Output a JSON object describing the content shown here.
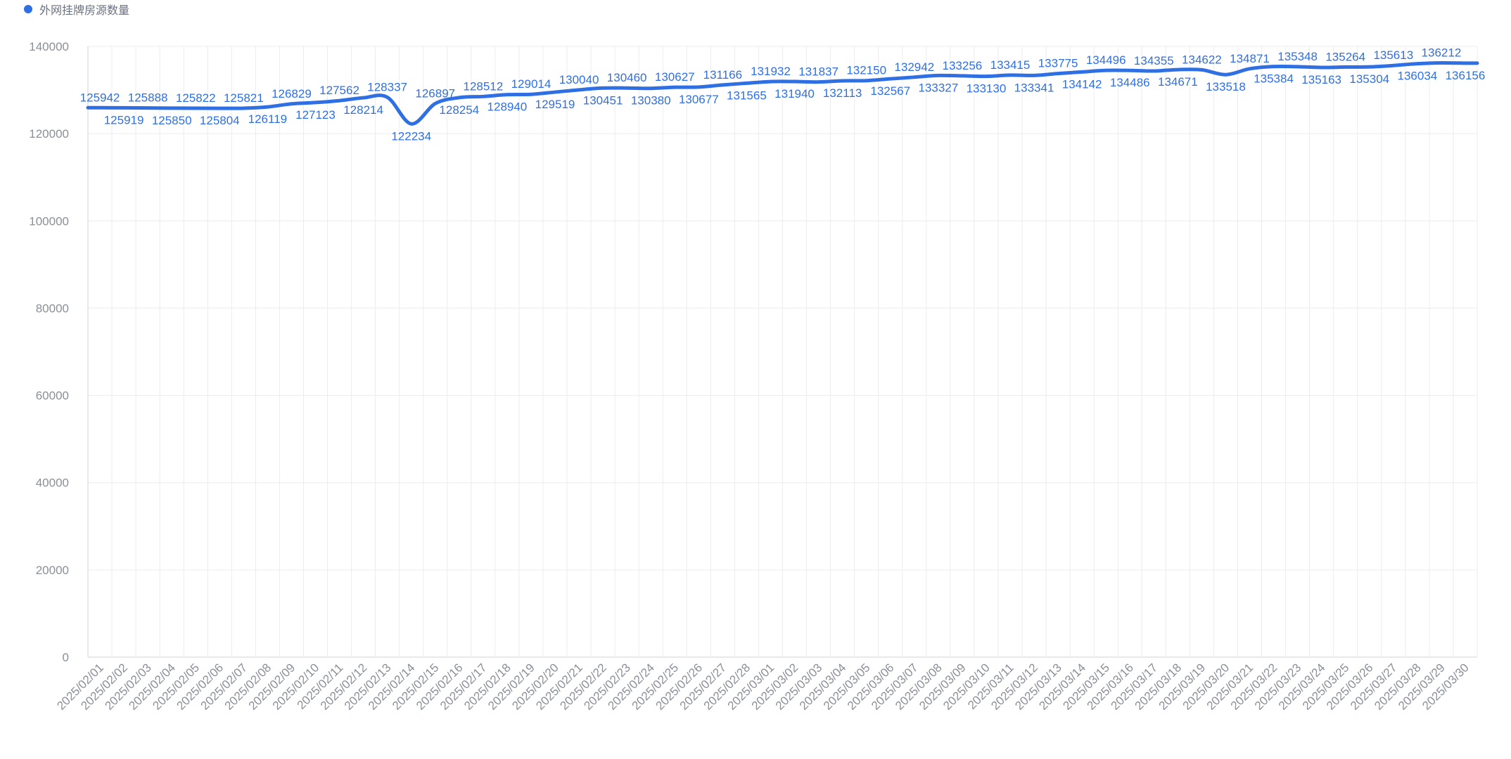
{
  "chart_data": {
    "type": "line",
    "legend": {
      "position": "top-left",
      "color": "#2f6fe4"
    },
    "colors": {
      "line": "#2f6fe4",
      "grid": "#ececec",
      "axis": "#cfd3d9",
      "tick_text": "#8a8f98"
    },
    "series": [
      {
        "name": "外网挂牌房源数量",
        "values": [
          125942,
          125919,
          125888,
          125850,
          125822,
          125804,
          125821,
          126119,
          126829,
          127123,
          127562,
          128214,
          128337,
          122234,
          126897,
          128254,
          128512,
          128940,
          129014,
          129519,
          130040,
          130451,
          130460,
          130380,
          130627,
          130677,
          131166,
          131565,
          131932,
          131940,
          131837,
          132113,
          132150,
          132567,
          132942,
          133327,
          133256,
          133130,
          133415,
          133341,
          133775,
          134142,
          134496,
          134486,
          134355,
          134671,
          134622,
          133518,
          134871,
          135384,
          135348,
          135163,
          135264,
          135304,
          135613,
          136034,
          136212,
          136156
        ]
      }
    ],
    "x": [
      "2025/02/01",
      "2025/02/02",
      "2025/02/03",
      "2025/02/04",
      "2025/02/05",
      "2025/02/06",
      "2025/02/07",
      "2025/02/08",
      "2025/02/09",
      "2025/02/10",
      "2025/02/11",
      "2025/02/12",
      "2025/02/13",
      "2025/02/14",
      "2025/02/15",
      "2025/02/16",
      "2025/02/17",
      "2025/02/18",
      "2025/02/19",
      "2025/02/20",
      "2025/02/21",
      "2025/02/22",
      "2025/02/23",
      "2025/02/24",
      "2025/02/25",
      "2025/02/26",
      "2025/02/27",
      "2025/02/28",
      "2025/03/01",
      "2025/03/02",
      "2025/03/03",
      "2025/03/04",
      "2025/03/05",
      "2025/03/06",
      "2025/03/07",
      "2025/03/08",
      "2025/03/09",
      "2025/03/10",
      "2025/03/11",
      "2025/03/12",
      "2025/03/13",
      "2025/03/14",
      "2025/03/15",
      "2025/03/16",
      "2025/03/17",
      "2025/03/18",
      "2025/03/19",
      "2025/03/20",
      "2025/03/21",
      "2025/03/22",
      "2025/03/23",
      "2025/03/24",
      "2025/03/25",
      "2025/03/26",
      "2025/03/27",
      "2025/03/28",
      "2025/03/29",
      "2025/03/30"
    ],
    "ylim": [
      0,
      140000
    ],
    "yticks": [
      0,
      20000,
      40000,
      60000,
      80000,
      100000,
      120000,
      140000
    ],
    "grid": true,
    "smooth": true,
    "data_labels": true
  }
}
